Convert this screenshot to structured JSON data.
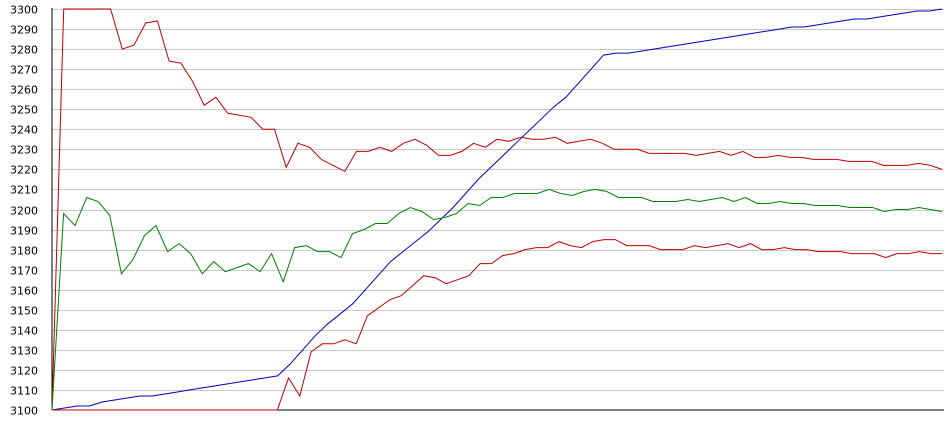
{
  "chart_data": {
    "type": "line",
    "title": "",
    "xlabel": "",
    "ylabel": "",
    "ylim": [
      3100,
      3300
    ],
    "yticks": [
      3100,
      3110,
      3120,
      3130,
      3140,
      3150,
      3160,
      3170,
      3180,
      3190,
      3200,
      3210,
      3220,
      3230,
      3240,
      3250,
      3260,
      3270,
      3280,
      3290,
      3300
    ],
    "grid": true,
    "legend": "none",
    "series": [
      {
        "color": "#0000c0",
        "values": [
          3100,
          3101,
          3102,
          3102,
          3104,
          3105,
          3106,
          3107,
          3107,
          3108,
          3109,
          3110,
          3111,
          3112,
          3113,
          3114,
          3115,
          3116,
          3117,
          3123,
          3130,
          3137,
          3143,
          3148,
          3153,
          3160,
          3167,
          3174,
          3179,
          3184,
          3189,
          3195,
          3201,
          3208,
          3215,
          3221,
          3227,
          3233,
          3239,
          3245,
          3251,
          3256,
          3263,
          3270,
          3277,
          3278,
          3278,
          3279,
          3280,
          3281,
          3282,
          3283,
          3284,
          3285,
          3286,
          3287,
          3288,
          3289,
          3290,
          3291,
          3291,
          3292,
          3293,
          3294,
          3295,
          3295,
          3296,
          3297,
          3298,
          3299,
          3299,
          3300
        ]
      },
      {
        "color": "#c00000",
        "values": [
          3100,
          3300,
          3300,
          3300,
          3300,
          3300,
          3280,
          3282,
          3293,
          3294,
          3274,
          3273,
          3264,
          3252,
          3256,
          3248,
          3247,
          3246,
          3240,
          3240,
          3221,
          3233,
          3231,
          3225,
          3222,
          3219,
          3229,
          3229,
          3231,
          3229,
          3233,
          3235,
          3232,
          3227,
          3227,
          3229,
          3233,
          3231,
          3235,
          3234,
          3236,
          3235,
          3235,
          3236,
          3233,
          3234,
          3235,
          3233,
          3230,
          3230,
          3230,
          3228,
          3228,
          3228,
          3228,
          3227,
          3228,
          3229,
          3227,
          3229,
          3226,
          3226,
          3227,
          3226,
          3226,
          3225,
          3225,
          3225,
          3224,
          3224,
          3224,
          3222,
          3222,
          3222,
          3223,
          3222,
          3220
        ]
      },
      {
        "color": "#008000",
        "values": [
          3100,
          3198,
          3192,
          3206,
          3204,
          3197,
          3168,
          3175,
          3187,
          3192,
          3179,
          3183,
          3178,
          3168,
          3174,
          3169,
          3171,
          3173,
          3169,
          3178,
          3164,
          3181,
          3182,
          3179,
          3179,
          3176,
          3188,
          3190,
          3193,
          3193,
          3198,
          3201,
          3199,
          3195,
          3196,
          3198,
          3203,
          3202,
          3206,
          3206,
          3208,
          3208,
          3208,
          3210,
          3208,
          3207,
          3209,
          3210,
          3209,
          3206,
          3206,
          3206,
          3204,
          3204,
          3204,
          3205,
          3204,
          3205,
          3206,
          3204,
          3206,
          3203,
          3203,
          3204,
          3203,
          3203,
          3202,
          3202,
          3202,
          3201,
          3201,
          3201,
          3199,
          3200,
          3200,
          3201,
          3200,
          3199
        ]
      },
      {
        "color": "#c00000",
        "values": [
          3100,
          3100,
          3100,
          3100,
          3100,
          3100,
          3100,
          3100,
          3100,
          3100,
          3100,
          3100,
          3100,
          3100,
          3100,
          3100,
          3100,
          3100,
          3100,
          3100,
          3100,
          3116,
          3107,
          3129,
          3133,
          3133,
          3135,
          3133,
          3147,
          3151,
          3155,
          3157,
          3162,
          3167,
          3166,
          3163,
          3165,
          3167,
          3173,
          3173,
          3177,
          3178,
          3180,
          3181,
          3181,
          3184,
          3182,
          3181,
          3184,
          3185,
          3185,
          3182,
          3182,
          3182,
          3180,
          3180,
          3180,
          3182,
          3181,
          3182,
          3183,
          3181,
          3183,
          3180,
          3180,
          3181,
          3180,
          3180,
          3179,
          3179,
          3179,
          3178,
          3178,
          3178,
          3176,
          3178,
          3178,
          3179,
          3178,
          3178
        ]
      }
    ]
  }
}
